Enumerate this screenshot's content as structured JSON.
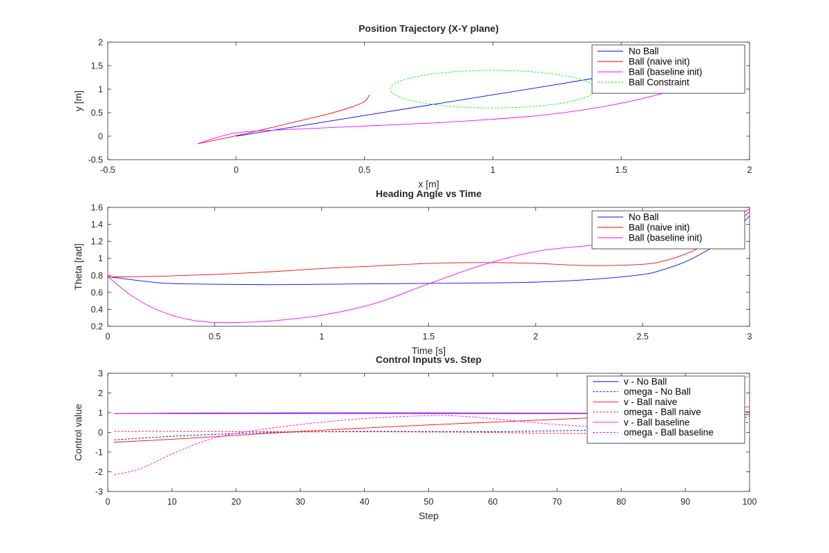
{
  "chart_data": [
    {
      "type": "line",
      "title": "Position Trajectory (X-Y plane)",
      "xlabel": "x [m]",
      "ylabel": "y [m]",
      "xlim": [
        -0.5,
        2
      ],
      "ylim": [
        -0.5,
        2
      ],
      "xticks": [
        -0.5,
        0,
        0.5,
        1,
        1.5,
        2
      ],
      "yticks": [
        -0.5,
        0,
        0.5,
        1,
        1.5,
        2
      ],
      "xtick_labels": [
        "-0.5",
        "0",
        "0.5",
        "1",
        "1.5",
        "2"
      ],
      "ytick_labels": [
        "-0.5",
        "0",
        "0.5",
        "1",
        "1.5",
        "2"
      ],
      "grid": false,
      "legend": "top-right",
      "series": [
        {
          "name": "No Ball",
          "color": "#0000ff",
          "dash": "solid",
          "x": [
            0,
            0.25,
            0.5,
            0.75,
            1.0,
            1.25,
            1.5,
            1.75,
            1.95
          ],
          "y": [
            0,
            0.22,
            0.44,
            0.66,
            0.88,
            1.1,
            1.33,
            1.55,
            1.9
          ]
        },
        {
          "name": "Ball (naive init)",
          "color": "#ff0000",
          "dash": "solid",
          "x": [
            -0.15,
            -0.05,
            0.05,
            0.15,
            0.25,
            0.35,
            0.45,
            0.5,
            0.52
          ],
          "y": [
            -0.16,
            -0.05,
            0.07,
            0.2,
            0.33,
            0.46,
            0.62,
            0.74,
            0.88
          ]
        },
        {
          "name": "Ball (baseline init)",
          "color": "#ff00ff",
          "dash": "solid",
          "x": [
            -0.15,
            0,
            0.2,
            0.4,
            0.6,
            0.8,
            1.0,
            1.2,
            1.4,
            1.55,
            1.7,
            1.85,
            1.95
          ],
          "y": [
            -0.16,
            0.07,
            0.14,
            0.19,
            0.24,
            0.29,
            0.36,
            0.45,
            0.6,
            0.76,
            0.97,
            1.25,
            1.65
          ]
        },
        {
          "name": "Ball Constraint",
          "color": "#00ff00",
          "dash": "dashed",
          "shape": "ellipse",
          "center": [
            1.0,
            1.0
          ],
          "radius_x": 0.4,
          "radius_y": 0.4
        }
      ]
    },
    {
      "type": "line",
      "title": "Heading Angle vs Time",
      "xlabel": "Time [s]",
      "ylabel": "Theta [rad]",
      "xlim": [
        0,
        3
      ],
      "ylim": [
        0.2,
        1.6
      ],
      "xticks": [
        0,
        0.5,
        1,
        1.5,
        2,
        2.5,
        3
      ],
      "yticks": [
        0.2,
        0.4,
        0.6,
        0.8,
        1,
        1.2,
        1.4,
        1.6
      ],
      "xtick_labels": [
        "0",
        "0.5",
        "1",
        "1.5",
        "2",
        "2.5",
        "3"
      ],
      "ytick_labels": [
        "0.2",
        "0.4",
        "0.6",
        "0.8",
        "1",
        "1.2",
        "1.4",
        "1.6"
      ],
      "grid": false,
      "legend": "top-right",
      "series": [
        {
          "name": "No Ball",
          "color": "#0000ff",
          "dash": "solid",
          "x": [
            0,
            0.25,
            0.5,
            0.75,
            1.0,
            1.25,
            1.5,
            1.75,
            2.0,
            2.25,
            2.5,
            2.6,
            2.7,
            2.8,
            2.9,
            3.0
          ],
          "y": [
            0.785,
            0.71,
            0.695,
            0.69,
            0.695,
            0.7,
            0.705,
            0.71,
            0.72,
            0.75,
            0.81,
            0.87,
            0.96,
            1.09,
            1.25,
            1.5
          ]
        },
        {
          "name": "Ball (naive init)",
          "color": "#ff0000",
          "dash": "solid",
          "x": [
            0,
            0.25,
            0.5,
            0.75,
            1.0,
            1.25,
            1.5,
            1.75,
            2.0,
            2.25,
            2.5,
            2.6,
            2.7,
            2.8,
            2.9,
            3.0
          ],
          "y": [
            0.78,
            0.79,
            0.81,
            0.84,
            0.88,
            0.91,
            0.94,
            0.95,
            0.94,
            0.915,
            0.93,
            0.97,
            1.05,
            1.17,
            1.32,
            1.55
          ]
        },
        {
          "name": "Ball (baseline init)",
          "color": "#ff00ff",
          "dash": "solid",
          "x": [
            0,
            0.1,
            0.2,
            0.3,
            0.4,
            0.5,
            0.6,
            0.75,
            1.0,
            1.25,
            1.5,
            1.75,
            2.0,
            2.25,
            2.5,
            2.75,
            3.0
          ],
          "y": [
            0.785,
            0.58,
            0.43,
            0.33,
            0.27,
            0.245,
            0.245,
            0.26,
            0.33,
            0.47,
            0.7,
            0.92,
            1.08,
            1.15,
            1.2,
            1.27,
            1.58
          ]
        }
      ]
    },
    {
      "type": "line",
      "title": "Control Inputs vs. Step",
      "xlabel": "Step",
      "ylabel": "Control value",
      "xlim": [
        0,
        100
      ],
      "ylim": [
        -3,
        3
      ],
      "xticks": [
        0,
        10,
        20,
        30,
        40,
        50,
        60,
        70,
        80,
        90,
        100
      ],
      "yticks": [
        -3,
        -2,
        -1,
        0,
        1,
        2,
        3
      ],
      "xtick_labels": [
        "0",
        "10",
        "20",
        "30",
        "40",
        "50",
        "60",
        "70",
        "80",
        "90",
        "100"
      ],
      "ytick_labels": [
        "-3",
        "-2",
        "-1",
        "0",
        "1",
        "2",
        "3"
      ],
      "grid": false,
      "legend": "top-right",
      "series": [
        {
          "name": "v - No Ball",
          "color": "#0000ff",
          "dash": "solid",
          "x": [
            1,
            10,
            20,
            30,
            40,
            50,
            60,
            70,
            80,
            90,
            100
          ],
          "y": [
            0.95,
            0.96,
            0.96,
            0.96,
            0.96,
            0.96,
            0.96,
            0.96,
            0.95,
            0.93,
            0.9
          ]
        },
        {
          "name": "omega - No Ball",
          "color": "#0000ff",
          "dash": "dashed",
          "x": [
            1,
            10,
            20,
            30,
            40,
            50,
            60,
            70,
            80,
            90,
            100
          ],
          "y": [
            -0.38,
            -0.2,
            -0.06,
            0.02,
            0.05,
            0.04,
            0.04,
            0.08,
            0.15,
            0.3,
            0.5
          ]
        },
        {
          "name": "v - Ball naive",
          "color": "#ff0000",
          "dash": "solid",
          "x": [
            1,
            10,
            20,
            30,
            40,
            50,
            60,
            70,
            80,
            90,
            100
          ],
          "y": [
            -0.5,
            -0.35,
            -0.15,
            0.05,
            0.22,
            0.38,
            0.52,
            0.66,
            0.8,
            0.92,
            1.05
          ]
        },
        {
          "name": "omega - Ball naive",
          "color": "#ff0000",
          "dash": "dashed",
          "x": [
            1,
            10,
            20,
            30,
            40,
            50,
            60,
            70,
            80,
            90,
            100
          ],
          "y": [
            0.05,
            0.05,
            0.04,
            0.03,
            0.03,
            0.02,
            0.0,
            -0.05,
            -0.03,
            0.2,
            0.8
          ]
        },
        {
          "name": "v - Ball baseline",
          "color": "#ff00ff",
          "dash": "solid",
          "x": [
            1,
            10,
            20,
            30,
            40,
            50,
            60,
            70,
            80,
            90,
            100
          ],
          "y": [
            0.95,
            0.98,
            0.99,
            1.0,
            1.0,
            1.0,
            0.99,
            0.98,
            0.97,
            0.98,
            1.3
          ]
        },
        {
          "name": "omega - Ball baseline",
          "color": "#ff00ff",
          "dash": "dashed",
          "x": [
            1,
            5,
            10,
            15,
            20,
            30,
            40,
            50,
            55,
            60,
            70,
            80,
            90,
            100
          ],
          "y": [
            -2.15,
            -1.85,
            -1.1,
            -0.45,
            -0.05,
            0.4,
            0.7,
            0.85,
            0.82,
            0.7,
            0.4,
            0.3,
            0.9,
            2.9
          ]
        }
      ]
    }
  ]
}
